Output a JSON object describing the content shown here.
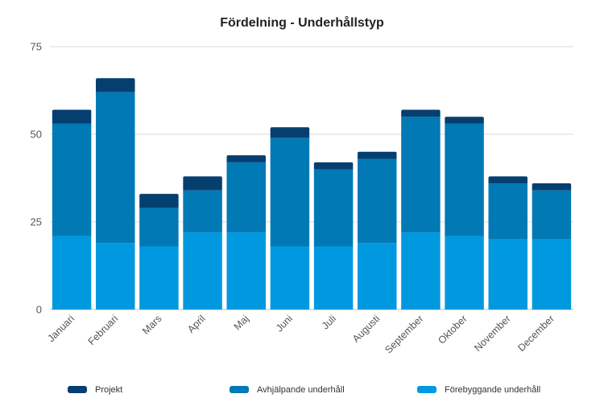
{
  "chart_data": {
    "type": "bar",
    "stacked": true,
    "title": "Fördelning - Underhållstyp",
    "categories": [
      "Januari",
      "Februari",
      "Mars",
      "April",
      "Maj",
      "Juni",
      "Juli",
      "Augusti",
      "September",
      "Oktober",
      "November",
      "December"
    ],
    "series": [
      {
        "name": "Förebyggande underhåll",
        "color": "#0099e0",
        "values": [
          21,
          19,
          18,
          22,
          22,
          18,
          18,
          19,
          22,
          21,
          20,
          20
        ]
      },
      {
        "name": "Avhjälpande underhåll",
        "color": "#0079b5",
        "values": [
          32,
          43,
          11,
          12,
          20,
          31,
          22,
          24,
          33,
          32,
          16,
          14
        ]
      },
      {
        "name": "Projekt",
        "color": "#053f70",
        "values": [
          4,
          4,
          4,
          4,
          2,
          3,
          2,
          2,
          2,
          2,
          2,
          2
        ]
      }
    ],
    "legend_order": [
      "Projekt",
      "Avhjälpande underhåll",
      "Förebyggande underhåll"
    ],
    "ylim": [
      0,
      75
    ],
    "yticks": [
      0,
      25,
      50,
      75
    ],
    "grid": true,
    "legend_position": "bottom"
  }
}
